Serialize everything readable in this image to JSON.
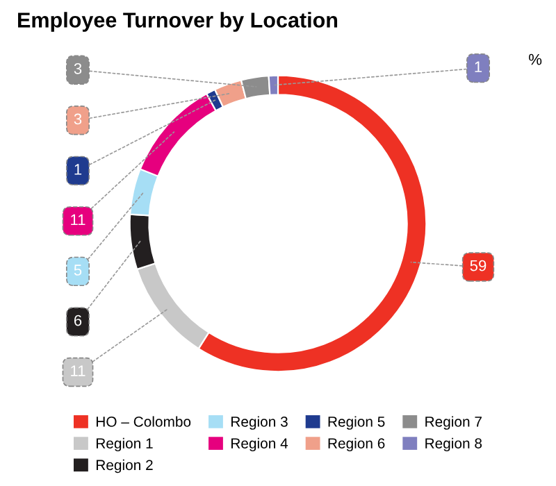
{
  "chart_data": {
    "type": "donut",
    "title": "Employee Turnover by Location",
    "annotations": [
      "%"
    ],
    "categories": [
      "HO – Colombo",
      "Region 1",
      "Region 2",
      "Region 3",
      "Region 4",
      "Region 5",
      "Region 6",
      "Region 7",
      "Region 8"
    ],
    "values": [
      59,
      11,
      6,
      5,
      11,
      1,
      3,
      3,
      1
    ],
    "colors": [
      "#ee3124",
      "#c8c8c8",
      "#231f20",
      "#a6def5",
      "#e6007e",
      "#1f3b8f",
      "#f0a08a",
      "#8c8c8c",
      "#7f7fbf"
    ],
    "data_labels": true,
    "legend": "bottom"
  }
}
